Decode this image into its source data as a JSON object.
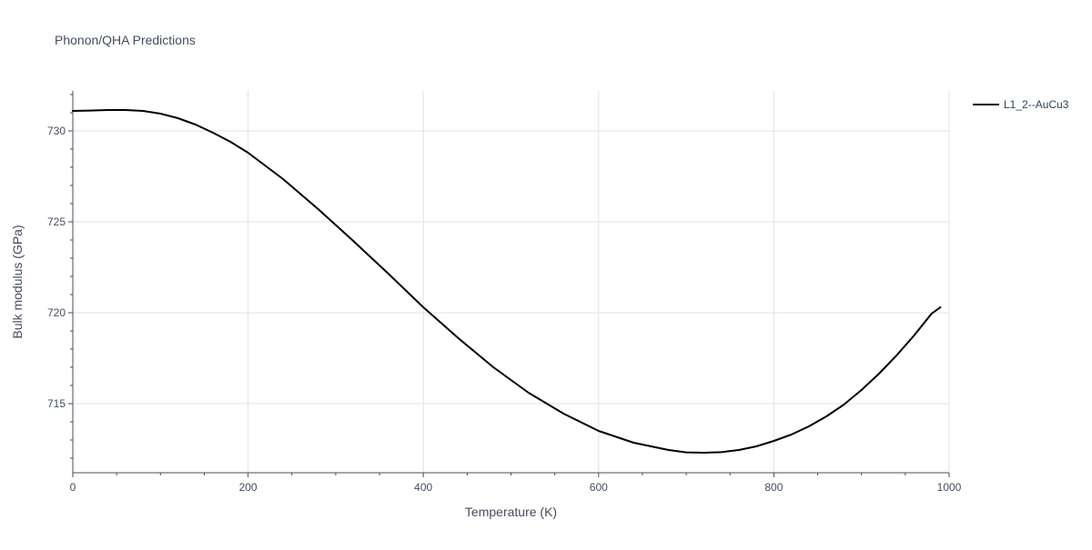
{
  "chart_data": {
    "type": "line",
    "title": "Phonon/QHA Predictions",
    "xlabel": "Temperature (K)",
    "ylabel": "Bulk modulus (GPa)",
    "xlim": [
      0,
      1000
    ],
    "ylim": [
      711.2,
      732.2
    ],
    "x_ticks": [
      0,
      200,
      400,
      600,
      800,
      1000
    ],
    "x_tick_labels": [
      "0",
      "200",
      "400",
      "600",
      "800",
      "1000"
    ],
    "y_ticks": [
      715,
      720,
      725,
      730
    ],
    "y_tick_labels": [
      "715",
      "720",
      "725",
      "730"
    ],
    "grid": true,
    "legend_position": "top-right",
    "colors": {
      "series": "#000000",
      "grid": "#e1e1e1",
      "axis": "#444c5c"
    },
    "series": [
      {
        "name": "L1_2--AuCu3",
        "x": [
          0,
          20,
          40,
          60,
          80,
          100,
          120,
          140,
          160,
          180,
          200,
          240,
          280,
          320,
          360,
          400,
          440,
          480,
          520,
          560,
          600,
          640,
          680,
          700,
          720,
          740,
          760,
          780,
          800,
          820,
          840,
          860,
          880,
          900,
          920,
          940,
          960,
          980,
          990
        ],
        "y": [
          731.1,
          731.12,
          731.15,
          731.15,
          731.1,
          730.95,
          730.7,
          730.35,
          729.9,
          729.4,
          728.8,
          727.35,
          725.7,
          723.95,
          722.15,
          720.3,
          718.6,
          717.0,
          715.6,
          714.45,
          713.5,
          712.85,
          712.45,
          712.32,
          712.3,
          712.33,
          712.45,
          712.65,
          712.95,
          713.3,
          713.75,
          714.3,
          714.95,
          715.75,
          716.65,
          717.65,
          718.75,
          719.95,
          720.3
        ]
      }
    ]
  }
}
